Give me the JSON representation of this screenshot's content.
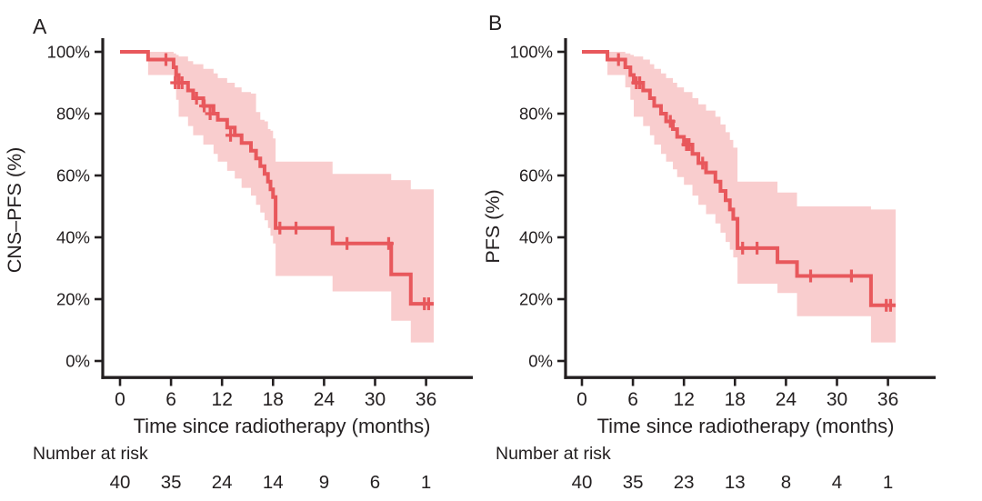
{
  "figure": {
    "background": "#ffffff",
    "line_color": "#e8585c",
    "band_color": "#f9cdce",
    "text_color": "#231f20",
    "axis_color": "#231f20"
  },
  "chart_data": [
    {
      "type": "line",
      "subtype": "kaplan-meier-step",
      "panel_label": "A",
      "xlabel": "Time since radiotherapy (months)",
      "ylabel": "CNS–PFS (%)",
      "xlim": [
        0,
        41.5
      ],
      "ylim": [
        0,
        100
      ],
      "grid": false,
      "legend": "none",
      "xticks": [
        0,
        6,
        12,
        18,
        24,
        30,
        36
      ],
      "yticks": [
        0,
        20,
        40,
        60,
        80,
        100
      ],
      "ytick_labels": [
        "0%",
        "20%",
        "40%",
        "60%",
        "80%",
        "100%"
      ],
      "curve_end": 36.9,
      "steps": [
        [
          0,
          100
        ],
        [
          3.3,
          97.5
        ],
        [
          6.3,
          95
        ],
        [
          6.6,
          92.5
        ],
        [
          6.9,
          90
        ],
        [
          8.0,
          87.5
        ],
        [
          8.6,
          85
        ],
        [
          9.8,
          82.5
        ],
        [
          11.0,
          80
        ],
        [
          11.5,
          78
        ],
        [
          12.6,
          75.5
        ],
        [
          13.5,
          73
        ],
        [
          14.3,
          70.5
        ],
        [
          15.4,
          68
        ],
        [
          16.0,
          65.5
        ],
        [
          16.5,
          63
        ],
        [
          17.0,
          60.5
        ],
        [
          17.4,
          58
        ],
        [
          17.7,
          55.5
        ],
        [
          18.0,
          53
        ],
        [
          18.3,
          43
        ],
        [
          25.0,
          38
        ],
        [
          31.9,
          28
        ],
        [
          34.2,
          18.5
        ]
      ],
      "censors": [
        [
          5.4,
          97.5
        ],
        [
          6.5,
          90
        ],
        [
          6.9,
          90
        ],
        [
          7.3,
          90
        ],
        [
          9.0,
          85
        ],
        [
          9.9,
          82.5
        ],
        [
          10.6,
          80
        ],
        [
          13.0,
          73
        ],
        [
          18.8,
          43
        ],
        [
          20.7,
          43
        ],
        [
          26.7,
          38
        ],
        [
          31.6,
          38
        ],
        [
          35.8,
          18.5
        ],
        [
          36.3,
          18.5
        ]
      ],
      "band": [
        [
          3.3,
          92.5,
          100
        ],
        [
          6.3,
          88.5,
          99.5
        ],
        [
          6.6,
          84.5,
          99
        ],
        [
          6.9,
          79,
          98.5
        ],
        [
          8.0,
          76,
          97
        ],
        [
          8.6,
          73,
          96
        ],
        [
          9.8,
          70,
          94.5
        ],
        [
          11.0,
          67,
          93
        ],
        [
          11.5,
          64.5,
          91.5
        ],
        [
          12.6,
          61.5,
          90
        ],
        [
          13.5,
          59,
          88.5
        ],
        [
          14.3,
          56,
          87
        ],
        [
          15.4,
          53.5,
          86.5
        ],
        [
          16.0,
          50.5,
          80.5
        ],
        [
          16.5,
          48,
          78
        ],
        [
          17.0,
          45.5,
          77.5
        ],
        [
          17.4,
          43,
          75
        ],
        [
          17.7,
          40.5,
          74.5
        ],
        [
          18.0,
          38,
          72
        ],
        [
          18.3,
          27.5,
          64.5
        ],
        [
          25.0,
          22.5,
          60.5
        ],
        [
          31.9,
          13,
          58.5
        ],
        [
          34.2,
          6,
          55.5
        ]
      ],
      "number_at_risk_label": "Number at risk",
      "number_at_risk": {
        "times": [
          0,
          6,
          12,
          18,
          24,
          30,
          36
        ],
        "counts": [
          40,
          35,
          24,
          14,
          9,
          6,
          1
        ]
      }
    },
    {
      "type": "line",
      "subtype": "kaplan-meier-step",
      "panel_label": "B",
      "xlabel": "Time since radiotherapy (months)",
      "ylabel": "PFS (%)",
      "xlim": [
        0,
        41.5
      ],
      "ylim": [
        0,
        100
      ],
      "grid": false,
      "legend": "none",
      "xticks": [
        0,
        6,
        12,
        18,
        24,
        30,
        36
      ],
      "yticks": [
        0,
        20,
        40,
        60,
        80,
        100
      ],
      "ytick_labels": [
        "0%",
        "20%",
        "40%",
        "60%",
        "80%",
        "100%"
      ],
      "curve_end": 36.9,
      "steps": [
        [
          0,
          100
        ],
        [
          3.0,
          97.5
        ],
        [
          5.1,
          95
        ],
        [
          5.7,
          92.5
        ],
        [
          6.1,
          90
        ],
        [
          7.2,
          87.5
        ],
        [
          8.0,
          85
        ],
        [
          8.5,
          82.5
        ],
        [
          9.3,
          80
        ],
        [
          9.9,
          77.5
        ],
        [
          10.7,
          75
        ],
        [
          11.2,
          72.5
        ],
        [
          12.0,
          70
        ],
        [
          13.0,
          67
        ],
        [
          13.7,
          64
        ],
        [
          14.6,
          61
        ],
        [
          15.7,
          58
        ],
        [
          16.3,
          55
        ],
        [
          16.9,
          52
        ],
        [
          17.4,
          49
        ],
        [
          17.8,
          46
        ],
        [
          18.3,
          36.5
        ],
        [
          23.0,
          32
        ],
        [
          25.3,
          27.5
        ],
        [
          34.0,
          18
        ]
      ],
      "censors": [
        [
          4.3,
          97.5
        ],
        [
          6.4,
          90
        ],
        [
          6.8,
          90
        ],
        [
          10.4,
          77.5
        ],
        [
          12.3,
          70
        ],
        [
          12.6,
          70
        ],
        [
          14.2,
          64
        ],
        [
          18.9,
          36.5
        ],
        [
          20.6,
          36.5
        ],
        [
          26.9,
          27.5
        ],
        [
          31.7,
          27.5
        ],
        [
          35.8,
          18
        ],
        [
          36.3,
          18
        ]
      ],
      "band": [
        [
          3.0,
          92.5,
          100
        ],
        [
          5.1,
          88.5,
          99.5
        ],
        [
          5.7,
          84.5,
          99
        ],
        [
          6.1,
          79,
          98.5
        ],
        [
          7.2,
          76,
          97.5
        ],
        [
          8.0,
          73,
          96
        ],
        [
          8.5,
          70,
          94.5
        ],
        [
          9.3,
          67,
          93
        ],
        [
          9.9,
          64.5,
          91.5
        ],
        [
          10.7,
          62,
          90
        ],
        [
          11.2,
          59.5,
          88.5
        ],
        [
          12.0,
          57,
          87
        ],
        [
          13.0,
          53.5,
          85
        ],
        [
          13.7,
          50.5,
          83
        ],
        [
          14.6,
          47.5,
          81
        ],
        [
          15.7,
          44.5,
          79
        ],
        [
          16.3,
          41.5,
          76.5
        ],
        [
          16.9,
          38.5,
          74
        ],
        [
          17.4,
          36,
          71.5
        ],
        [
          17.8,
          33.5,
          69
        ],
        [
          18.3,
          25,
          58
        ],
        [
          23.0,
          22,
          54.5
        ],
        [
          25.3,
          14.5,
          50
        ],
        [
          34.0,
          6,
          49
        ]
      ],
      "number_at_risk_label": "Number at risk",
      "number_at_risk": {
        "times": [
          0,
          6,
          12,
          18,
          24,
          30,
          36
        ],
        "counts": [
          40,
          35,
          23,
          13,
          8,
          4,
          1
        ]
      }
    }
  ]
}
